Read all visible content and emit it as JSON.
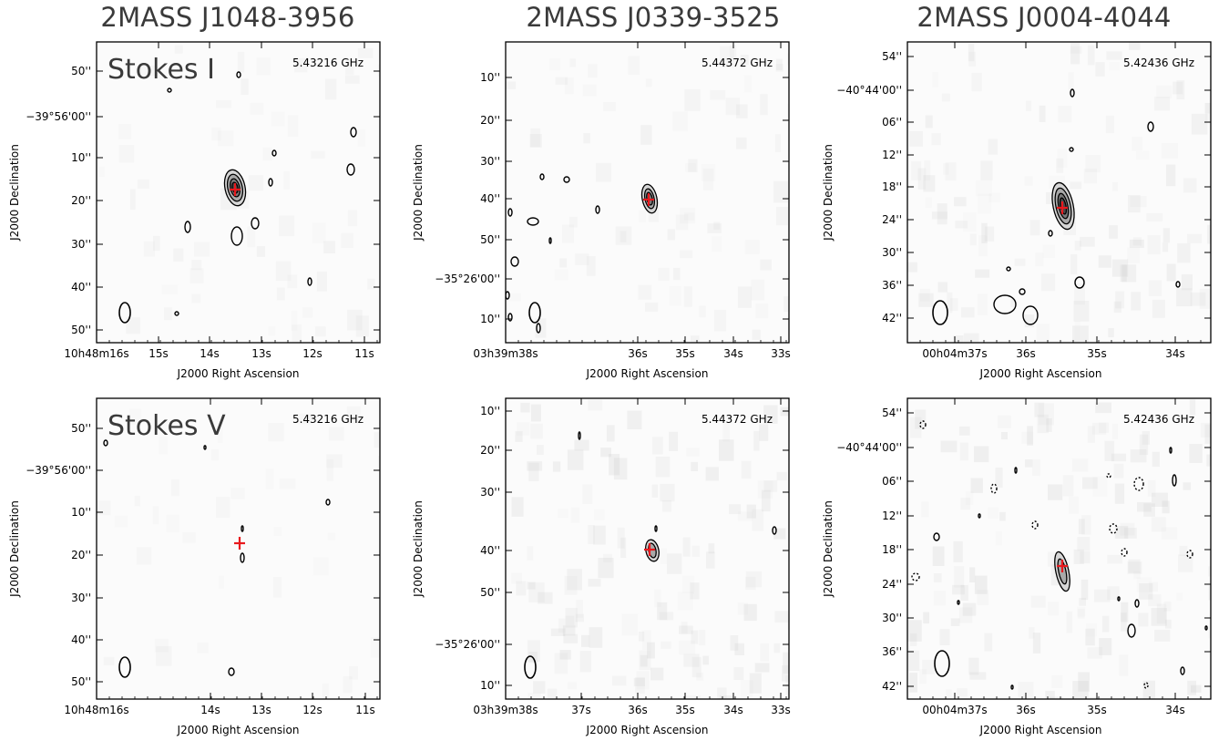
{
  "columns": [
    {
      "title": "2MASS J1048-3956"
    },
    {
      "title": "2MASS J0339-3525"
    },
    {
      "title": "2MASS J0004-4044"
    }
  ],
  "colors": {
    "contour": "#000000",
    "marker": "#e8191d",
    "axis": "#000000",
    "noise": "#c8c8c8"
  },
  "chart_data": [
    {
      "type": "heatmap",
      "row": "Stokes I",
      "col": 0,
      "stokes_label": "Stokes I",
      "freq": "5.43216 GHz",
      "xlabel": "J2000 Right Ascension",
      "ylabel": "J2000 Declination",
      "xticks": [
        "10h48m16s",
        "15s",
        "14s",
        "13s",
        "12s",
        "11s"
      ],
      "yticks": [
        "50''",
        "−39°56'00''",
        "10''",
        "20''",
        "30''",
        "40''",
        "50''"
      ],
      "source": {
        "ra": "10h48m13.5s",
        "dec": "-39°56'17\""
      }
    },
    {
      "type": "heatmap",
      "row": "Stokes I",
      "col": 1,
      "freq": "5.44372 GHz",
      "xlabel": "J2000 Right Ascension",
      "ylabel": "J2000 Declination",
      "xticks": [
        "03h39m38s",
        "36s",
        "35s",
        "34s",
        "33s"
      ],
      "yticks": [
        "10''",
        "20''",
        "30''",
        "40''",
        "50''",
        "−35°26'00''",
        "10''"
      ],
      "source": {
        "ra": "03h39m35.5s",
        "dec": "-35°25'41\""
      }
    },
    {
      "type": "heatmap",
      "row": "Stokes I",
      "col": 2,
      "freq": "5.42436 GHz",
      "xlabel": "J2000 Right Ascension",
      "ylabel": "J2000 Declination",
      "xticks": [
        "00h04m37s",
        "36s",
        "35s",
        "34s"
      ],
      "yticks": [
        "54''",
        "−40°44'00''",
        "06''",
        "12''",
        "18''",
        "24''",
        "30''",
        "36''",
        "42''"
      ],
      "source": {
        "ra": "00h04m35.5s",
        "dec": "-40°44'22\""
      }
    },
    {
      "type": "heatmap",
      "row": "Stokes V",
      "col": 0,
      "stokes_label": "Stokes V",
      "freq": "5.43216 GHz",
      "xlabel": "J2000 Right Ascension",
      "ylabel": "J2000 Declination",
      "xticks": [
        "10h48m16s",
        "14s",
        "13s",
        "12s",
        "11s"
      ],
      "yticks": [
        "50''",
        "−39°56'00''",
        "10''",
        "20''",
        "30''",
        "40''",
        "50''"
      ],
      "source": {
        "ra": "10h48m13.5s",
        "dec": "-39°56'17\""
      }
    },
    {
      "type": "heatmap",
      "row": "Stokes V",
      "col": 1,
      "freq": "5.44372 GHz",
      "xlabel": "J2000 Right Ascension",
      "ylabel": "J2000 Declination",
      "xticks": [
        "03h39m38s",
        "37s",
        "36s",
        "35s",
        "34s",
        "33s"
      ],
      "yticks": [
        "10''",
        "20''",
        "30''",
        "40''",
        "50''",
        "−35°26'00''",
        "10''"
      ],
      "source": {
        "ra": "03h39m35.5s",
        "dec": "-35°25'41\""
      }
    },
    {
      "type": "heatmap",
      "row": "Stokes V",
      "col": 2,
      "freq": "5.42436 GHz",
      "xlabel": "J2000 Right Ascension",
      "ylabel": "J2000 Declination",
      "xticks": [
        "00h04m37s",
        "36s",
        "35s",
        "34s"
      ],
      "yticks": [
        "54''",
        "−40°44'00''",
        "06''",
        "12''",
        "18''",
        "24''",
        "30''",
        "36''",
        "42''"
      ],
      "source": {
        "ra": "00h04m35.5s",
        "dec": "-40°44'22\""
      }
    }
  ]
}
